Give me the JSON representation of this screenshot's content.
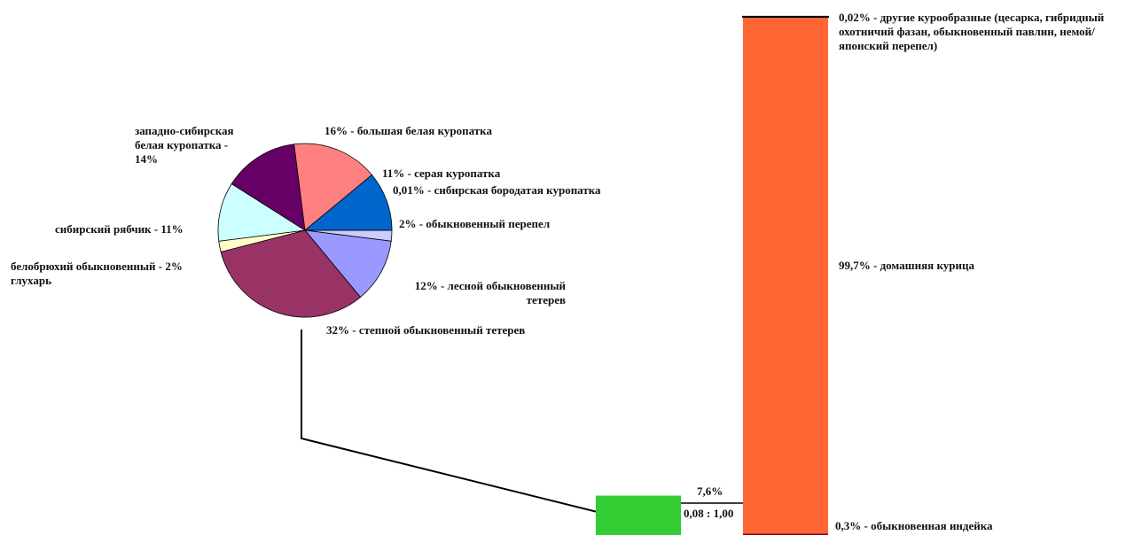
{
  "chart_data": [
    {
      "type": "pie",
      "values": [
        2,
        12,
        32,
        2,
        11,
        14,
        16,
        11,
        0.01
      ],
      "value_labels": [
        "2% - обыкновенный перепел",
        "12% - лесной обыкновенный тетерев",
        "32% - степной обыкновенный тетерев",
        "белобрюхий обыкновенный - 2% глухарь",
        "сибирский рябчик - 11%",
        "западно-сибирская белая куропатка - 14%",
        "16% - большая белая куропатка",
        "11% - серая куропатка",
        "0,01% - сибирская бородатая куропатка"
      ],
      "colors": [
        "#ccccff",
        "#9999ff",
        "#993366",
        "#ffffcc",
        "#ccffff",
        "#660066",
        "#ff8080",
        "#0066cc",
        "#0066cc"
      ]
    },
    {
      "type": "stacked-bar",
      "values": [
        0.3,
        99.7,
        0.02
      ],
      "value_labels": [
        "0,3% - обыкновенная индейка",
        "99,7% - домашняя курица",
        "0,02% - другие курообразные (цесарка, гибридный охотничий фазан, обыкновенный павлин, немой/японский перепел)"
      ],
      "colors": [
        "#8b0000",
        "#ff6633",
        "#000000"
      ],
      "ylim": [
        0,
        100
      ]
    },
    {
      "type": "bar",
      "values": [
        7.6
      ],
      "value_labels": [
        "7,6%"
      ],
      "color": "#33cc33",
      "annotation": "0,08 : 1,00",
      "ylim": [
        0,
        100
      ]
    }
  ]
}
